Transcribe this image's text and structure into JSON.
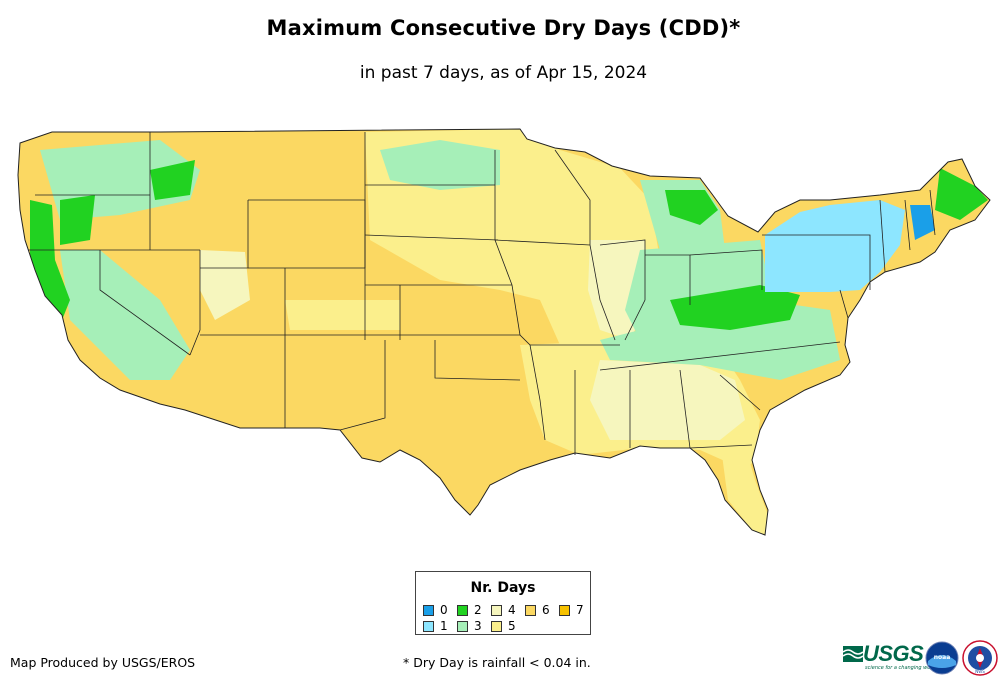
{
  "title": "Maximum Consecutive Dry Days (CDD)*",
  "subtitle": "in past 7 days, as of Apr 15, 2024",
  "legend": {
    "title": "Nr. Days",
    "items": [
      {
        "label": "0",
        "color": "#1a9fe8"
      },
      {
        "label": "1",
        "color": "#8de6ff"
      },
      {
        "label": "2",
        "color": "#21d221"
      },
      {
        "label": "3",
        "color": "#a6efb8"
      },
      {
        "label": "4",
        "color": "#f6f6be"
      },
      {
        "label": "5",
        "color": "#fbef8c"
      },
      {
        "label": "6",
        "color": "#fbd862"
      },
      {
        "label": "7",
        "color": "#f7c200"
      }
    ]
  },
  "credit": "Map Produced by USGS/EROS",
  "footnote": "* Dry Day is rainfall < 0.04 in.",
  "logos": {
    "usgs": "USGS",
    "usgs_tagline": "science for a changing world",
    "noaa": "noaa",
    "nws": "NWS"
  }
}
